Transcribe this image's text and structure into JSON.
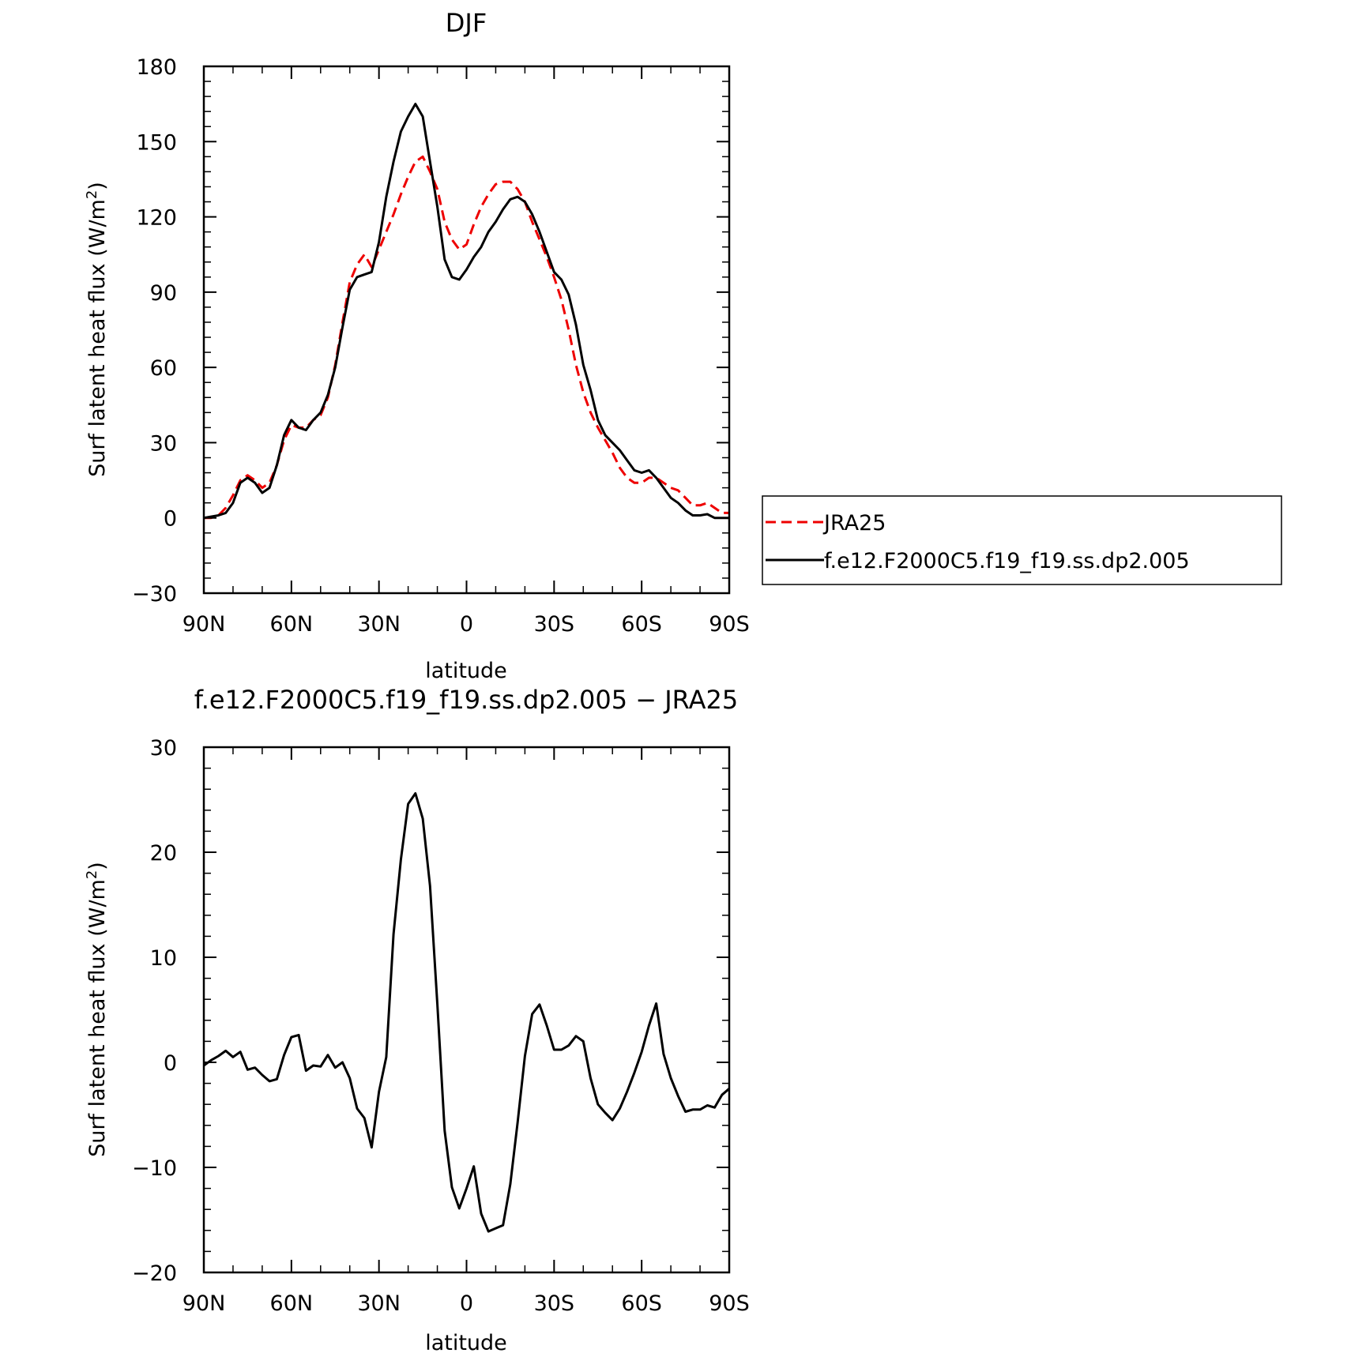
{
  "colors": {
    "JRA25": "#ee0000",
    "model": "#000000"
  },
  "chart_data": [
    {
      "type": "line",
      "title": "DJF",
      "xlabel": "latitude",
      "ylabel": "Surf latent heat flux (W/m",
      "ylabel_superscript": "2",
      "ylabel_suffix": ")",
      "xlim": [
        90,
        -90
      ],
      "ylim": [
        -30,
        180
      ],
      "xticks": [
        90,
        60,
        30,
        0,
        -30,
        -60,
        -90
      ],
      "xticklabels": [
        "90N",
        "60N",
        "30N",
        "0",
        "30S",
        "60S",
        "90S"
      ],
      "yticks": [
        -30,
        0,
        30,
        60,
        90,
        120,
        150,
        180
      ],
      "yticklabels": [
        "−30",
        "0",
        "30",
        "60",
        "90",
        "120",
        "150",
        "180"
      ],
      "legend": {
        "placement": "right",
        "entries": [
          "JRA25",
          "f.e12.F2000C5.f19_f19.ss.dp2.005"
        ]
      },
      "series": [
        {
          "name": "JRA25",
          "style": "dashed",
          "color": "#ee0000",
          "x": [
            90,
            87.5,
            85,
            82.5,
            80,
            77.5,
            75,
            72.5,
            70,
            67.5,
            65,
            62.5,
            60,
            57.5,
            55,
            52.5,
            50,
            47.5,
            45,
            42.5,
            40,
            37.5,
            35,
            32.5,
            30,
            27.5,
            25,
            22.5,
            20,
            17.5,
            15,
            12.5,
            10,
            7.5,
            5,
            2.5,
            0,
            -2.5,
            -5,
            -7.5,
            -10,
            -12.5,
            -15,
            -17.5,
            -20,
            -22.5,
            -25,
            -27.5,
            -30,
            -32.5,
            -35,
            -37.5,
            -40,
            -42.5,
            -45,
            -47.5,
            -50,
            -52.5,
            -55,
            -57.5,
            -60,
            -62.5,
            -65,
            -67.5,
            -70,
            -72.5,
            -75,
            -77.5,
            -80,
            -82.5,
            -85,
            -87.5,
            -90
          ],
          "y": [
            0,
            0,
            1,
            4,
            9,
            15,
            17,
            15,
            12,
            14,
            21,
            31,
            37,
            36,
            36,
            39,
            41,
            48,
            61,
            78,
            94,
            101,
            105,
            100,
            107,
            114,
            121,
            129,
            136,
            142,
            144,
            138,
            131,
            118,
            111,
            107,
            109,
            117,
            124,
            129,
            133,
            134,
            134,
            131,
            126,
            118,
            111,
            104,
            96,
            87,
            75,
            61,
            50,
            42,
            36,
            31,
            26,
            20,
            16,
            14,
            14,
            16,
            16,
            14,
            12,
            11,
            8,
            5,
            5,
            6,
            4,
            2,
            2
          ]
        },
        {
          "name": "f.e12.F2000C5.f19_f19.ss.dp2.005",
          "style": "solid",
          "color": "#000000",
          "x": [
            90,
            87.5,
            85,
            82.5,
            80,
            77.5,
            75,
            72.5,
            70,
            67.5,
            65,
            62.5,
            60,
            57.5,
            55,
            52.5,
            50,
            47.5,
            45,
            42.5,
            40,
            37.5,
            35,
            32.5,
            30,
            27.5,
            25,
            22.5,
            20,
            17.5,
            15,
            12.5,
            10,
            7.5,
            5,
            2.5,
            0,
            -2.5,
            -5,
            -7.5,
            -10,
            -12.5,
            -15,
            -17.5,
            -20,
            -22.5,
            -25,
            -27.5,
            -30,
            -32.5,
            -35,
            -37.5,
            -40,
            -42.5,
            -45,
            -47.5,
            -50,
            -52.5,
            -55,
            -57.5,
            -60,
            -62.5,
            -65,
            -67.5,
            -70,
            -72.5,
            -75,
            -77.5,
            -80,
            -82.5,
            -85,
            -87.5,
            -90
          ],
          "y": [
            0,
            0.5,
            1,
            2,
            6,
            14,
            16,
            14,
            10,
            12,
            21,
            33,
            39,
            36,
            35,
            39,
            42,
            49,
            60,
            76,
            91,
            96,
            97,
            98,
            110,
            128,
            142,
            154,
            160,
            165,
            160,
            142,
            124,
            103,
            96,
            95,
            99,
            104,
            108,
            114,
            118,
            123,
            127,
            128,
            126,
            121,
            114,
            106,
            98,
            95,
            89,
            77,
            61,
            51,
            39,
            33,
            30,
            27,
            23,
            19,
            18,
            19,
            16,
            12,
            8,
            6,
            3,
            1,
            1,
            1.5,
            0,
            0,
            0
          ]
        }
      ]
    },
    {
      "type": "line",
      "title": "f.e12.F2000C5.f19_f19.ss.dp2.005 − JRA25",
      "xlabel": "latitude",
      "ylabel": "Surf latent heat flux (W/m",
      "ylabel_superscript": "2",
      "ylabel_suffix": ")",
      "xlim": [
        90,
        -90
      ],
      "ylim": [
        -20,
        30
      ],
      "xticks": [
        90,
        60,
        30,
        0,
        -30,
        -60,
        -90
      ],
      "xticklabels": [
        "90N",
        "60N",
        "30N",
        "0",
        "30S",
        "60S",
        "90S"
      ],
      "yticks": [
        -20,
        -10,
        0,
        10,
        20,
        30
      ],
      "yticklabels": [
        "−20",
        "−10",
        "0",
        "10",
        "20",
        "30"
      ],
      "series": [
        {
          "style": "solid",
          "color": "#000000",
          "x": [
            90,
            87.5,
            85,
            82.5,
            80,
            77.5,
            75,
            72.5,
            70,
            67.5,
            65,
            62.5,
            60,
            57.5,
            55,
            52.5,
            50,
            47.5,
            45,
            42.5,
            40,
            37.5,
            35,
            32.5,
            30,
            27.5,
            25,
            22.5,
            20,
            17.5,
            15,
            12.5,
            10,
            7.5,
            5,
            2.5,
            0,
            -2.5,
            -5,
            -7.5,
            -10,
            -12.5,
            -15,
            -17.5,
            -20,
            -22.5,
            -25,
            -27.5,
            -30,
            -32.5,
            -35,
            -37.5,
            -40,
            -42.5,
            -45,
            -47.5,
            -50,
            -52.5,
            -55,
            -57.5,
            -60,
            -62.5,
            -65,
            -67.5,
            -70,
            -72.5,
            -75,
            -77.5,
            -80,
            -82.5,
            -85,
            -87.5,
            -90
          ],
          "y": [
            -0.3,
            0.2,
            0.6,
            1.1,
            0.5,
            1.0,
            -0.7,
            -0.5,
            -1.2,
            -1.8,
            -1.6,
            0.7,
            2.4,
            2.6,
            -0.8,
            -0.3,
            -0.4,
            0.7,
            -0.5,
            0.0,
            -1.5,
            -4.4,
            -5.3,
            -8.1,
            -2.8,
            0.5,
            12.2,
            19.3,
            24.6,
            25.6,
            23.2,
            16.8,
            5.5,
            -6.5,
            -11.9,
            -13.9,
            -12.0,
            -9.9,
            -14.4,
            -16.1,
            -15.8,
            -15.5,
            -11.6,
            -5.7,
            0.6,
            4.6,
            5.5,
            3.5,
            1.2,
            1.2,
            1.6,
            2.5,
            2.0,
            -1.5,
            -4.0,
            -4.8,
            -5.5,
            -4.4,
            -2.8,
            -1.0,
            1.0,
            3.5,
            5.6,
            0.8,
            -1.5,
            -3.2,
            -4.7,
            -4.5,
            -4.5,
            -4.1,
            -4.3,
            -3.1,
            -2.5
          ]
        }
      ]
    }
  ]
}
